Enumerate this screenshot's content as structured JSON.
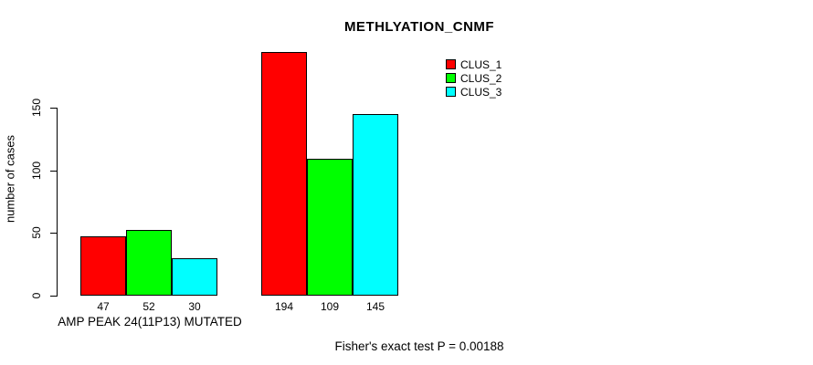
{
  "title": "METHLYATION_CNMF",
  "footnote": "Fisher's exact test P = 0.00188",
  "y_axis": {
    "title": "number of cases",
    "ticks": [
      0,
      50,
      100,
      150
    ]
  },
  "x_axis": {
    "group1_label": "AMP PEAK 24(11P13) MUTATED"
  },
  "legend": {
    "position": "top-right",
    "items": [
      {
        "label": "CLUS_1",
        "color": "#FF0000"
      },
      {
        "label": "CLUS_2",
        "color": "#00FF00"
      },
      {
        "label": "CLUS_3",
        "color": "#00FFFF"
      }
    ]
  },
  "chart_data": {
    "type": "bar",
    "title": "METHLYATION_CNMF",
    "xlabel": "AMP PEAK 24(11P13) MUTATED",
    "ylabel": "number of cases",
    "categories": [
      "AMP PEAK 24(11P13) MUTATED",
      ""
    ],
    "series": [
      {
        "name": "CLUS_1",
        "color": "#FF0000",
        "values": [
          47,
          194
        ]
      },
      {
        "name": "CLUS_2",
        "color": "#00FF00",
        "values": [
          52,
          109
        ]
      },
      {
        "name": "CLUS_3",
        "color": "#00FFFF",
        "values": [
          30,
          145
        ]
      }
    ],
    "bar_value_labels": [
      [
        47,
        52,
        30
      ],
      [
        194,
        109,
        145
      ]
    ],
    "yticks": [
      0,
      50,
      100,
      150
    ],
    "ylim": [
      0,
      200
    ],
    "grid": false,
    "legend_position": "top-right",
    "annotation": "Fisher's exact test P = 0.00188"
  }
}
